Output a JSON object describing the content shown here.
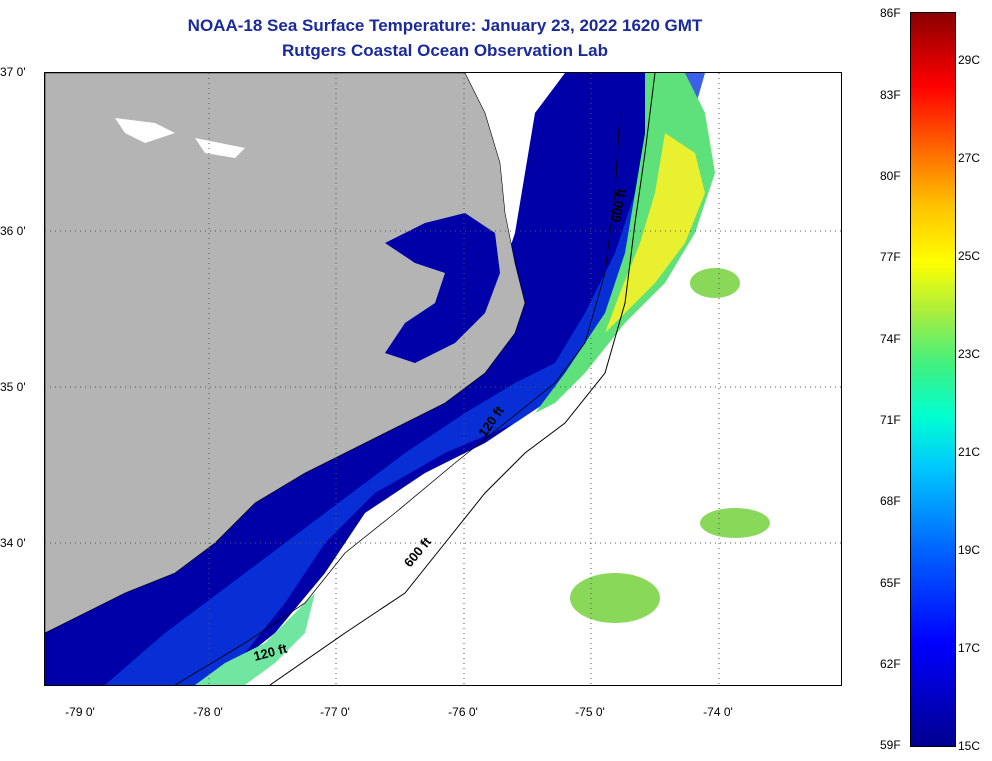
{
  "header": {
    "title": "NOAA-18 Sea Surface Temperature:  January 23, 2022 1620 GMT",
    "subtitle": "Rutgers Coastal Ocean Observation Lab"
  },
  "map": {
    "lat_ticks": [
      "37 0'",
      "36 0'",
      "35 0'",
      "34 0'"
    ],
    "lon_ticks": [
      "-79 0'",
      "-78 0'",
      "-77 0'",
      "-76 0'",
      "-75 0'",
      "-74 0'"
    ],
    "contour_labels": [
      "600 ft",
      "120 ft",
      "600 ft",
      "120 ft"
    ],
    "land_color": "#b4b4b4",
    "cloud_color": "#ffffff",
    "water_color": "#0000a0"
  },
  "colorbar": {
    "fahrenheit": [
      "86F",
      "83F",
      "80F",
      "77F",
      "74F",
      "71F",
      "68F",
      "65F",
      "62F",
      "59F"
    ],
    "celsius": [
      "29C",
      "27C",
      "25C",
      "23C",
      "21C",
      "19C",
      "17C",
      "15C"
    ]
  }
}
